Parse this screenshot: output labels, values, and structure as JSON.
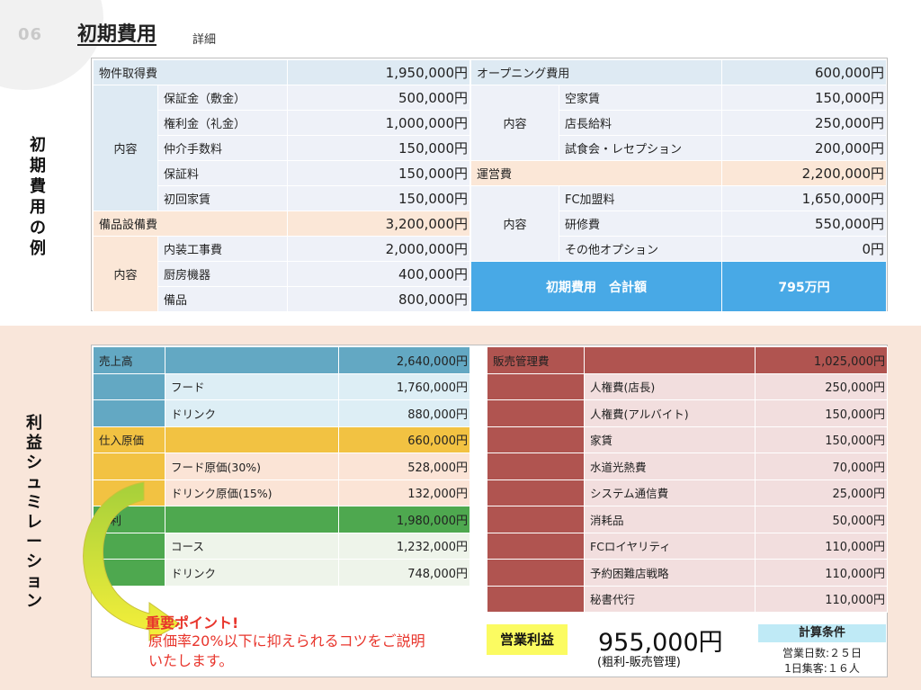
{
  "header": {
    "page_num": "06",
    "title": "初期費用",
    "subtitle": "詳細"
  },
  "side_labels": {
    "initial": [
      "初",
      "期",
      "費",
      "用",
      "の",
      "例"
    ],
    "sim": [
      "利",
      "益",
      "シ",
      "ュ",
      "ミ",
      "レ",
      "ー",
      "シ",
      "ョ",
      "ン"
    ]
  },
  "left_table": {
    "acq_label": "物件取得費",
    "acq_value": "1,950,000円",
    "acq_group": "内容",
    "acq_items": [
      {
        "label": "保証金（敷金）",
        "value": "500,000円"
      },
      {
        "label": "権利金（礼金）",
        "value": "1,000,000円"
      },
      {
        "label": "仲介手数料",
        "value": "150,000円"
      },
      {
        "label": "保証料",
        "value": "150,000円"
      },
      {
        "label": "初回家賃",
        "value": "150,000円"
      }
    ],
    "equip_label": "備品設備費",
    "equip_value": "3,200,000円",
    "equip_group": "内容",
    "equip_items": [
      {
        "label": "内装工事費",
        "value": "2,000,000円"
      },
      {
        "label": "厨房機器",
        "value": "400,000円"
      },
      {
        "label": "備品",
        "value": "800,000円"
      }
    ]
  },
  "right_table": {
    "open_label": "オープニング費用",
    "open_value": "600,000円",
    "open_group": "内容",
    "open_items": [
      {
        "label": "空家賃",
        "value": "150,000円"
      },
      {
        "label": "店長給料",
        "value": "250,000円"
      },
      {
        "label": "試食会・レセプション",
        "value": "200,000円"
      }
    ],
    "ops_label": "運営費",
    "ops_value": "2,200,000円",
    "ops_group": "内容",
    "ops_items": [
      {
        "label": "FC加盟料",
        "value": "1,650,000円"
      },
      {
        "label": "研修費",
        "value": "550,000円"
      },
      {
        "label": "その他オプション",
        "value": "0円"
      }
    ],
    "total_label": "初期費用　合計額",
    "total_value": "795万円"
  },
  "sales_table": {
    "sales_label": "売上高",
    "sales_value": "2,640,000円",
    "sales_items": [
      {
        "label": "フード",
        "value": "1,760,000円"
      },
      {
        "label": "ドリンク",
        "value": "880,000円"
      }
    ],
    "cost_label": "仕入原価",
    "cost_value": "660,000円",
    "cost_items": [
      {
        "label": "フード原価(30%)",
        "value": "528,000円"
      },
      {
        "label": "ドリンク原価(15%)",
        "value": "132,000円"
      }
    ],
    "gross_label": "粗利",
    "gross_value": "1,980,000円",
    "gross_items": [
      {
        "label": "コース",
        "value": "1,232,000円"
      },
      {
        "label": "ドリンク",
        "value": "748,000円"
      }
    ]
  },
  "sga_table": {
    "label": "販売管理費",
    "value": "1,025,000円",
    "items": [
      {
        "label": "人権費(店長)",
        "value": "250,000円"
      },
      {
        "label": "人権費(アルバイト)",
        "value": "150,000円"
      },
      {
        "label": "家賃",
        "value": "150,000円"
      },
      {
        "label": "水道光熱費",
        "value": "70,000円"
      },
      {
        "label": "システム通信費",
        "value": "25,000円"
      },
      {
        "label": "消耗品",
        "value": "50,000円"
      },
      {
        "label": "FCロイヤリティ",
        "value": "110,000円"
      },
      {
        "label": "予約困難店戦略",
        "value": "110,000円"
      },
      {
        "label": "秘書代行",
        "value": "110,000円"
      }
    ]
  },
  "operating": {
    "label": "営業利益",
    "value": "955,000円",
    "note": "(粗利-販売管理)"
  },
  "conditions": {
    "title": "計算条件",
    "line1": "営業日数:２５日",
    "line2": "1日集客:１６人"
  },
  "point": {
    "title": "重要ポイント!",
    "body_line1": "原価率20%以下に抑えられるコツをご説明",
    "body_line2": "いたします。"
  },
  "colors": {
    "accent_blue": "#48a9e6",
    "alert_red": "#e8352c"
  }
}
